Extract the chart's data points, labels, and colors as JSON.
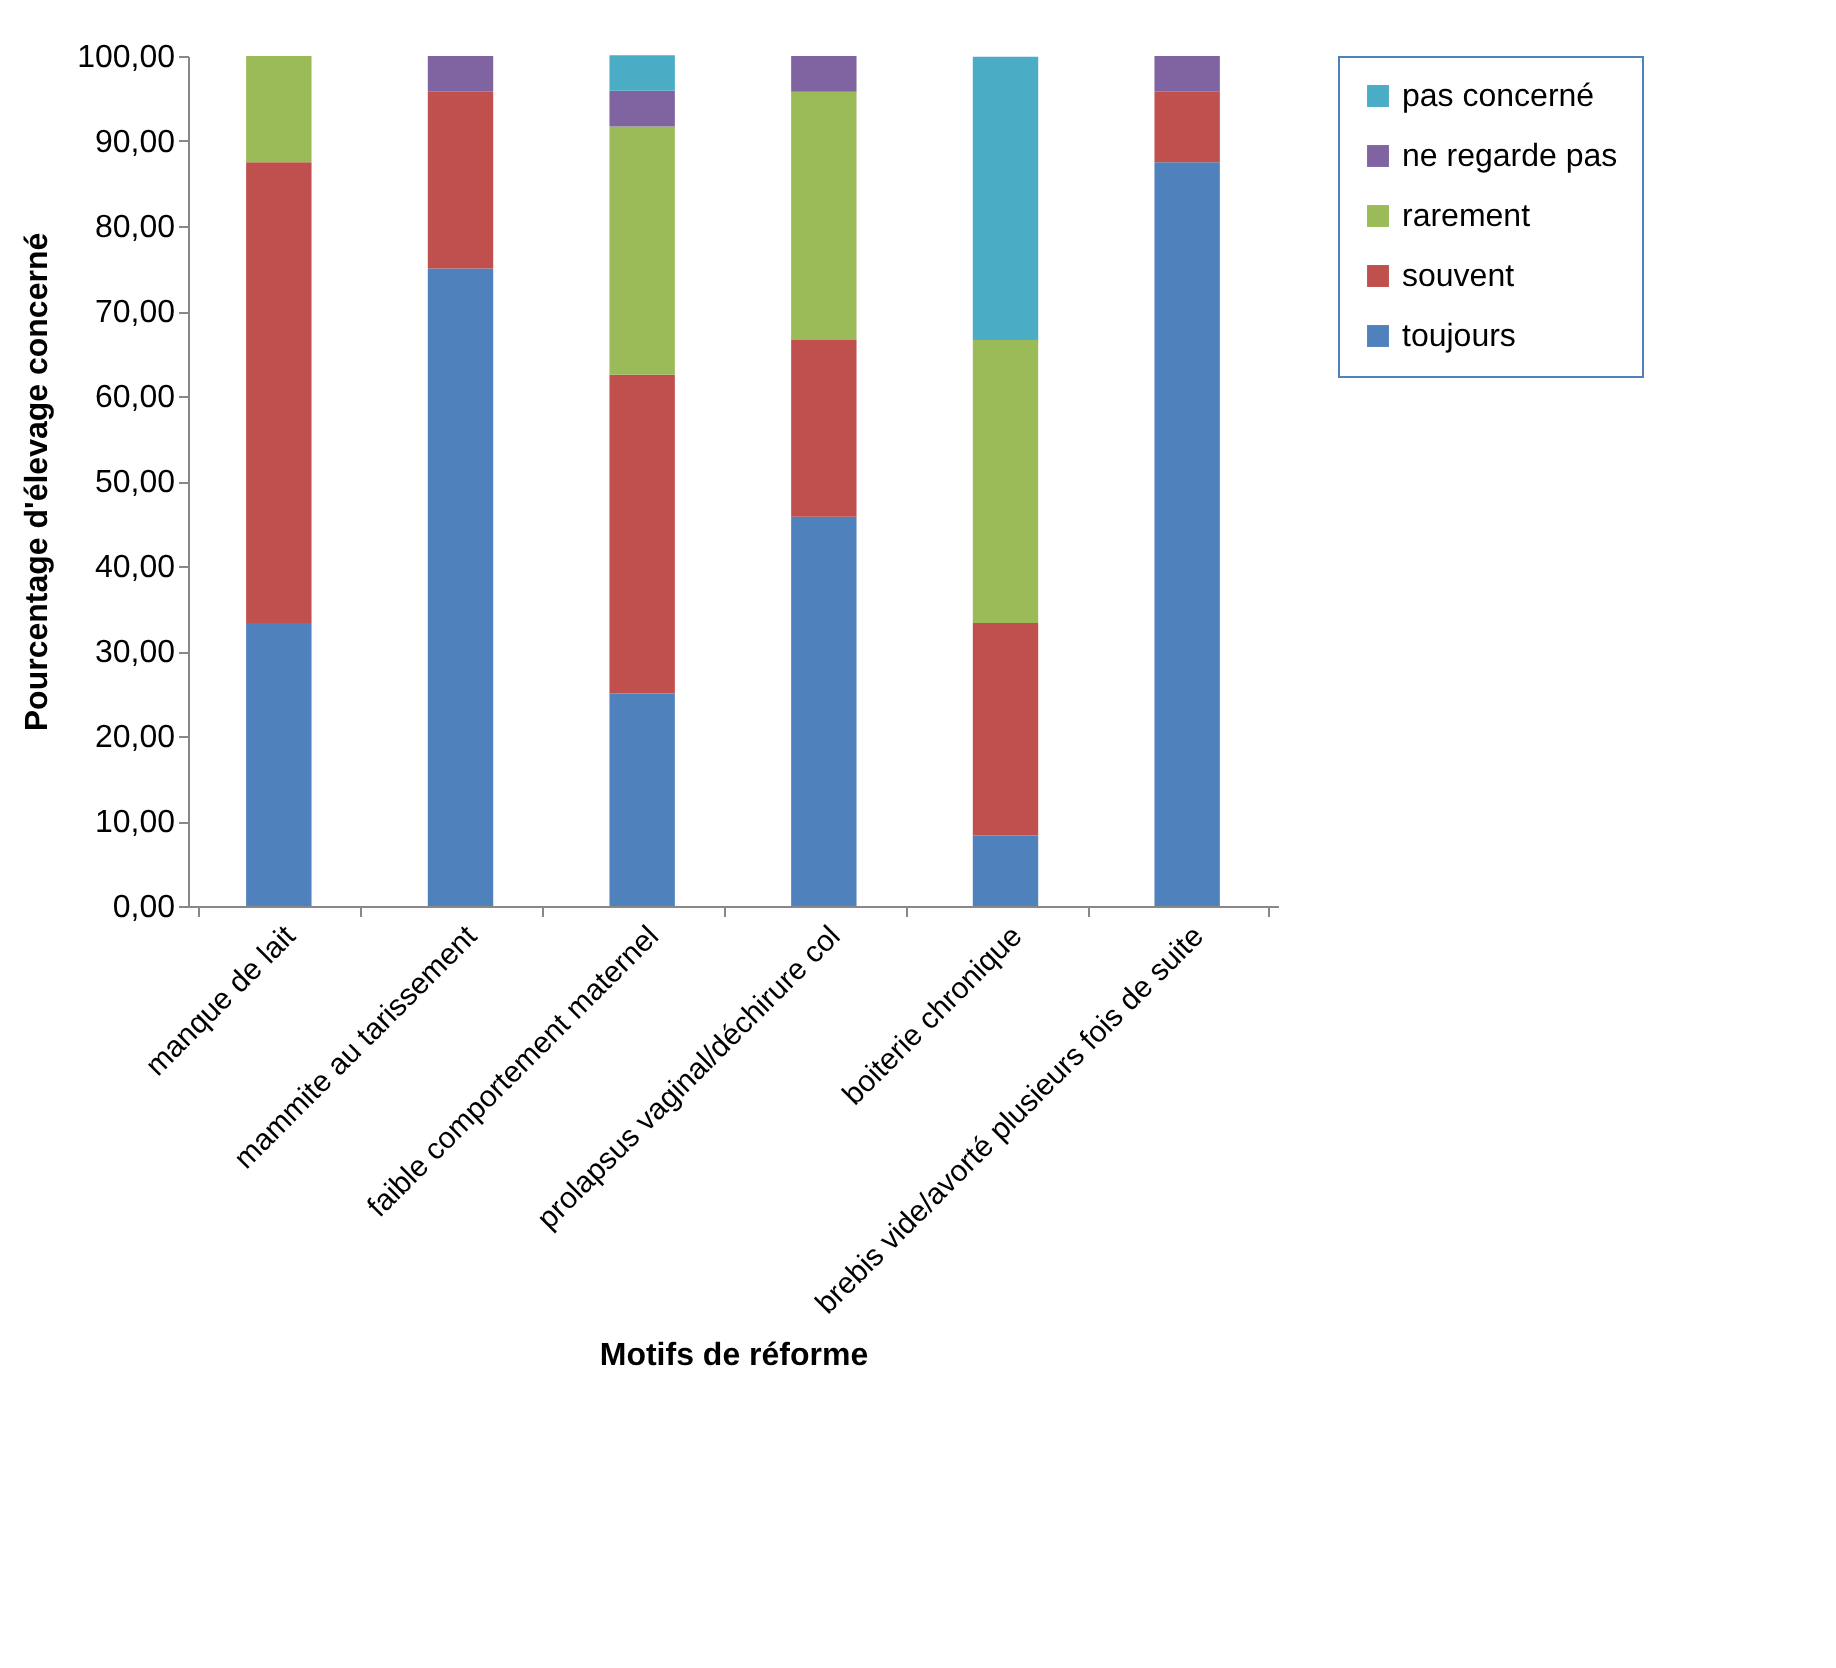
{
  "chart_data": {
    "type": "bar",
    "stacked": true,
    "xlabel": "Motifs de réforme",
    "ylabel": "Pourcentage d'élevage concerné",
    "categories": [
      "manque de lait",
      "mammite au tarissement",
      "faible comportement maternel",
      "prolapsus vaginal/déchirure col",
      "boiterie chronique",
      "brebis vide/avorté plusieurs fois de suite"
    ],
    "series": [
      {
        "name": "toujours",
        "color": "#4f81bd",
        "values": [
          33.3,
          75.0,
          25.0,
          45.8,
          8.3,
          87.5
        ]
      },
      {
        "name": "souvent",
        "color": "#c0504d",
        "values": [
          54.2,
          20.8,
          37.5,
          20.8,
          25.0,
          8.3
        ]
      },
      {
        "name": "rarement",
        "color": "#9bbb59",
        "values": [
          12.5,
          null,
          29.2,
          29.2,
          33.3,
          null
        ]
      },
      {
        "name": "ne regarde pas",
        "color": "#8064a2",
        "values": [
          null,
          4.2,
          4.2,
          4.2,
          null,
          4.2
        ]
      },
      {
        "name": "pas concerné",
        "color": "#4bacc6",
        "values": [
          null,
          null,
          4.2,
          null,
          33.3,
          null
        ]
      }
    ],
    "ylim": [
      0,
      100
    ],
    "yticks": [
      {
        "value": 0,
        "label": "0,00"
      },
      {
        "value": 10,
        "label": "10,00"
      },
      {
        "value": 20,
        "label": "20,00"
      },
      {
        "value": 30,
        "label": "30,00"
      },
      {
        "value": 40,
        "label": "40,00"
      },
      {
        "value": 50,
        "label": "50,00"
      },
      {
        "value": 60,
        "label": "60,00"
      },
      {
        "value": 70,
        "label": "70,00"
      },
      {
        "value": 80,
        "label": "80,00"
      },
      {
        "value": 90,
        "label": "90,00"
      },
      {
        "value": 100,
        "label": "100,00"
      }
    ],
    "grid": false,
    "legend": "right"
  }
}
